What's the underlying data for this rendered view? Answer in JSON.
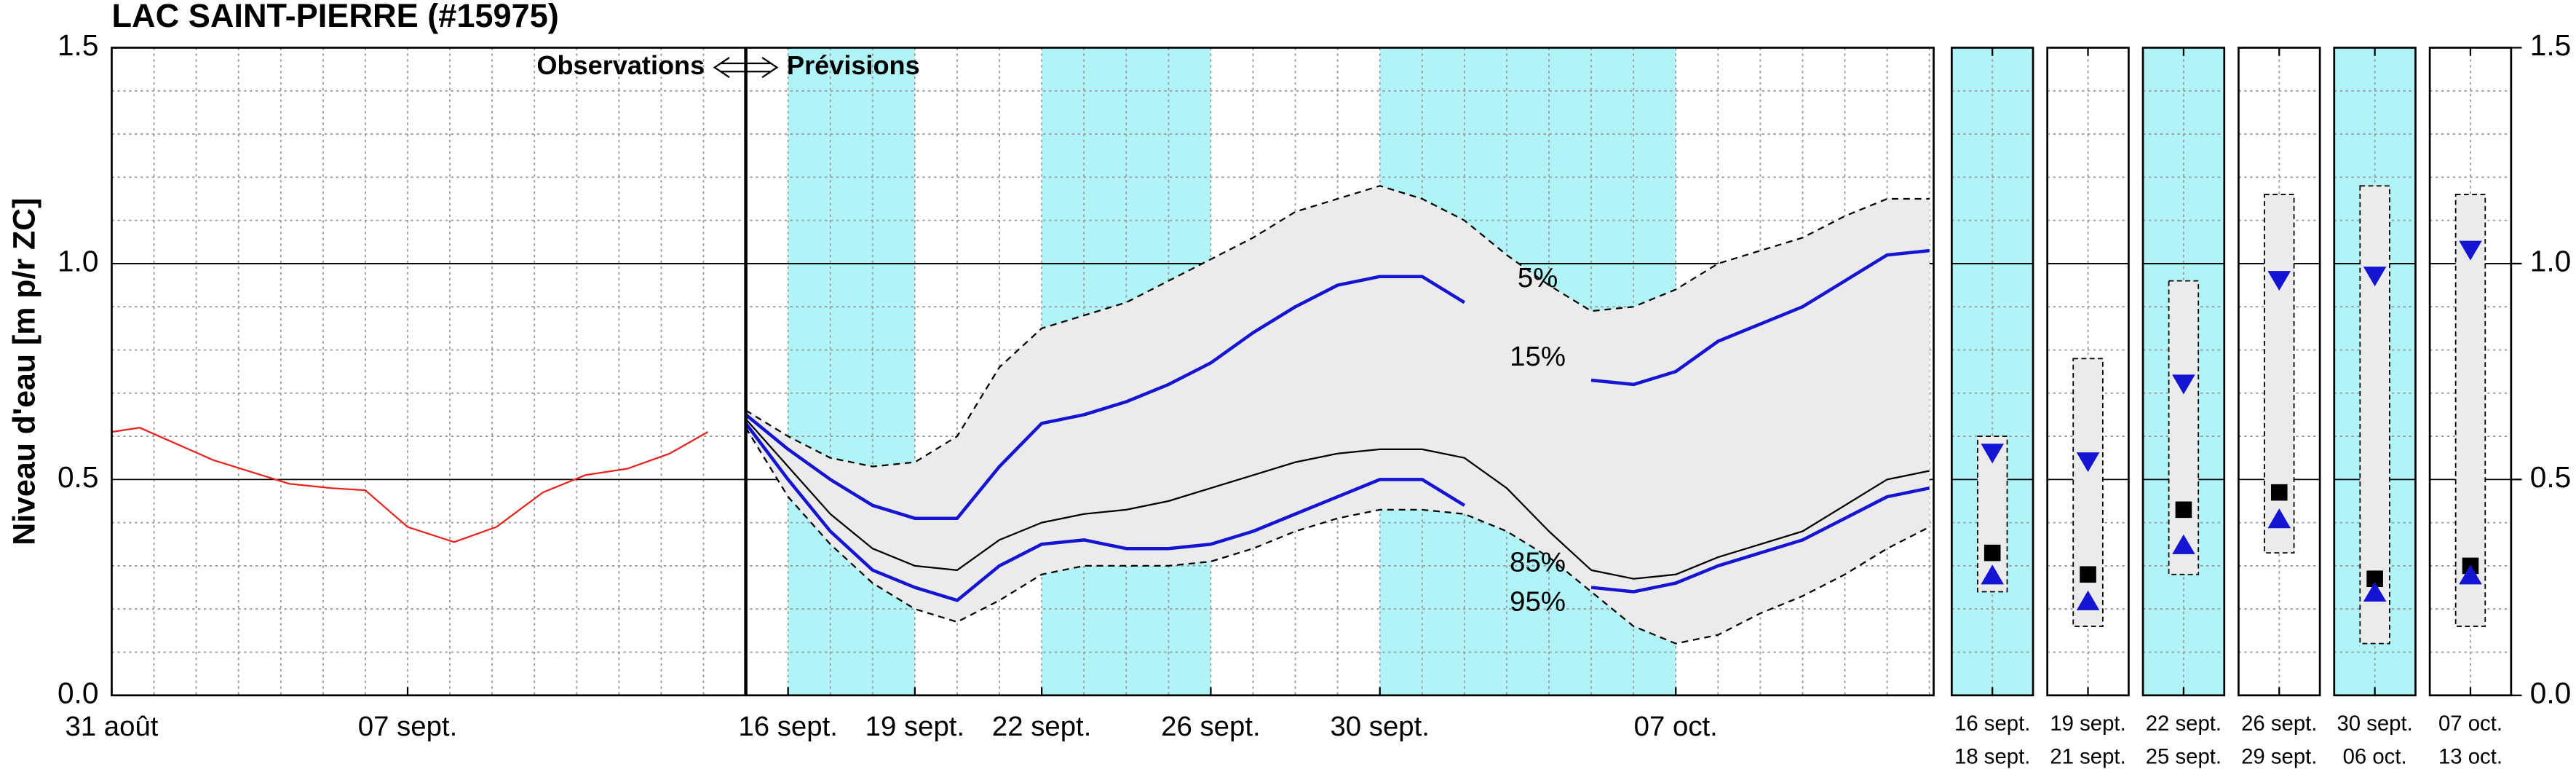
{
  "chart_data": {
    "type": "line",
    "title": "LAC SAINT-PIERRE (#15975)",
    "ylabel": "Niveau d'eau [m p/r ZC]",
    "annotations": {
      "left": "Observations",
      "right": "Prévisions"
    },
    "xlim": [
      0,
      43.1
    ],
    "xticks": [
      {
        "value": 0,
        "label": "31 août"
      },
      {
        "value": 7,
        "label": "07 sept."
      },
      {
        "value": 16,
        "label": "16 sept."
      },
      {
        "value": 19,
        "label": "19 sept."
      },
      {
        "value": 22,
        "label": "22 sept."
      },
      {
        "value": 26,
        "label": "26 sept."
      },
      {
        "value": 30,
        "label": "30 sept."
      },
      {
        "value": 37,
        "label": "07 oct."
      }
    ],
    "ylim": [
      0,
      1.5
    ],
    "yticks": [
      {
        "value": 0,
        "label": "0.0"
      },
      0.5,
      {
        "value": 1,
        "label": "1.0"
      },
      1.5
    ],
    "grid": true,
    "forecast_start": 15,
    "shaded_periods": [
      [
        16,
        19
      ],
      [
        22,
        26
      ],
      [
        30,
        37
      ]
    ],
    "shade_color": "#b0f4f8",
    "band_color": "#ebebeb",
    "x": [
      15,
      16,
      17,
      18,
      19,
      20,
      21,
      22,
      23,
      24,
      25,
      26,
      27,
      28,
      29,
      30,
      31,
      32,
      33,
      34,
      35,
      36,
      37,
      38,
      39,
      40,
      41,
      42,
      43
    ],
    "series": [
      {
        "color": "#e8231f",
        "width": 1,
        "dashed": false,
        "x": [
          0,
          0.66,
          2.4,
          4.2,
          5.2,
          6.0,
          7.0,
          8.1,
          9.1,
          10.2,
          11.2,
          12.2,
          13.2,
          14.1
        ],
        "values": [
          0.61,
          0.62,
          0.545,
          0.49,
          0.48,
          0.475,
          0.39,
          0.355,
          0.39,
          0.47,
          0.51,
          0.525,
          0.56,
          0.61
        ]
      },
      {
        "name": "5%",
        "color": "#000000",
        "width": 1,
        "dashed": true,
        "values": [
          0.66,
          0.6,
          0.55,
          0.53,
          0.54,
          0.6,
          0.76,
          0.85,
          0.88,
          0.91,
          0.96,
          1.01,
          1.06,
          1.12,
          1.15,
          1.18,
          1.15,
          1.1,
          1.02,
          0.95,
          0.89,
          0.9,
          0.94,
          1.0,
          1.03,
          1.06,
          1.11,
          1.15,
          1.15
        ]
      },
      {
        "name": "15%",
        "color": "#1414d2",
        "width": 2,
        "dashed": false,
        "values": [
          0.65,
          0.57,
          0.5,
          0.44,
          0.41,
          0.41,
          0.53,
          0.63,
          0.65,
          0.68,
          0.72,
          0.77,
          0.84,
          0.9,
          0.95,
          0.97,
          0.97,
          0.91,
          null,
          null,
          0.73,
          0.72,
          0.75,
          0.82,
          0.86,
          0.9,
          0.96,
          1.02,
          1.03
        ]
      },
      {
        "color": "#000000",
        "width": 1,
        "dashed": false,
        "values": [
          0.64,
          0.53,
          0.42,
          0.34,
          0.3,
          0.29,
          0.36,
          0.4,
          0.42,
          0.43,
          0.45,
          0.48,
          0.51,
          0.54,
          0.56,
          0.57,
          0.57,
          0.55,
          0.48,
          0.38,
          0.29,
          0.27,
          0.28,
          0.32,
          0.35,
          0.38,
          0.44,
          0.5,
          0.52
        ]
      },
      {
        "name": "85%",
        "color": "#1414d2",
        "width": 2,
        "dashed": false,
        "values": [
          0.63,
          0.5,
          0.38,
          0.29,
          0.25,
          0.22,
          0.3,
          0.35,
          0.36,
          0.34,
          0.34,
          0.35,
          0.38,
          0.42,
          0.46,
          0.5,
          0.5,
          0.44,
          null,
          null,
          0.25,
          0.24,
          0.26,
          0.3,
          0.33,
          0.36,
          0.41,
          0.46,
          0.48
        ]
      },
      {
        "name": "95%",
        "color": "#000000",
        "width": 1,
        "dashed": true,
        "values": [
          0.62,
          0.46,
          0.35,
          0.26,
          0.2,
          0.17,
          0.22,
          0.28,
          0.3,
          0.3,
          0.3,
          0.31,
          0.34,
          0.38,
          0.41,
          0.43,
          0.43,
          0.42,
          0.38,
          0.32,
          0.24,
          0.16,
          0.12,
          0.14,
          0.19,
          0.23,
          0.28,
          0.34,
          0.39
        ]
      }
    ],
    "weekly": [
      {
        "start": "16 sept.",
        "end": "18 sept.",
        "low": 0.24,
        "high": 0.6,
        "median": 0.33,
        "p15": 0.56,
        "p85": 0.28,
        "shaded": true
      },
      {
        "start": "19 sept.",
        "end": "21 sept.",
        "low": 0.16,
        "high": 0.78,
        "median": 0.28,
        "p15": 0.54,
        "p85": 0.22,
        "shaded": false
      },
      {
        "start": "22 sept.",
        "end": "25 sept.",
        "low": 0.28,
        "high": 0.96,
        "median": 0.43,
        "p15": 0.72,
        "p85": 0.35,
        "shaded": true
      },
      {
        "start": "26 sept.",
        "end": "29 sept.",
        "low": 0.33,
        "high": 1.16,
        "median": 0.47,
        "p15": 0.96,
        "p85": 0.41,
        "shaded": false
      },
      {
        "start": "30 sept.",
        "end": "06 oct.",
        "low": 0.12,
        "high": 1.18,
        "median": 0.27,
        "p15": 0.97,
        "p85": 0.24,
        "shaded": true
      },
      {
        "start": "07 oct.",
        "end": "13 oct.",
        "low": 0.16,
        "high": 1.16,
        "median": 0.3,
        "p15": 1.03,
        "p85": 0.28,
        "shaded": false
      }
    ],
    "weekly_median_color": "#000000",
    "weekly_triangle_color": "#1414d2"
  }
}
